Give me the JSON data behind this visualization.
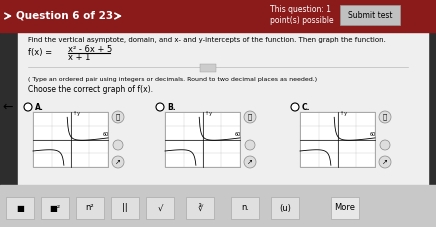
{
  "bg_color": "#2d2d2d",
  "header_bg": "#7a1a1a",
  "content_bg": "#f0f0f0",
  "bottom_bar_bg": "#d0d0d0",
  "title_text": "Question 6 of 23",
  "header_right_text": "This question: 1\npoint(s) possible",
  "submit_text": "Submit test",
  "question_text": "Find the vertical asymptote, domain, and x- and y-intercepts of the function. Then graph the function.",
  "function_label": "f(x) =",
  "numerator": "x² - 6x + 5",
  "denominator": "x + 1",
  "instruction_text": "( Type an ordered pair using integers or decimals. Round to two decimal places as needed.)",
  "choose_text": "Choose the correct graph of f(x).",
  "options": [
    "A.",
    "B.",
    "C."
  ],
  "bottom_buttons": [
    "■",
    "■²",
    "n²",
    "| |",
    "√̅",
    "∛̅",
    "n.",
    "(u)",
    "More"
  ],
  "white": "#ffffff",
  "dark_red": "#8b1a1a",
  "light_gray": "#e8e8e8",
  "medium_gray": "#cccccc",
  "text_dark": "#1a1a1a",
  "text_white": "#ffffff",
  "grid_color": "#aaaaaa",
  "arrow_color": "#333333"
}
